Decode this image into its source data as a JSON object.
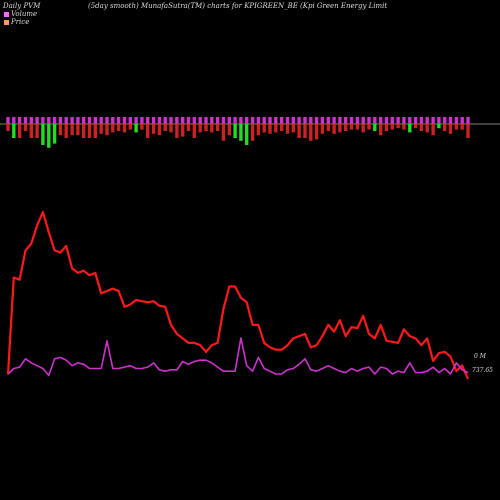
{
  "header": {
    "left": "Daily PVM",
    "middle": "(5day smooth) MunafaSutra(TM) charts for KPIGREEN_BE",
    "right": "(Kpi Green Energy Limit"
  },
  "legend": [
    {
      "label": "Volume",
      "color": "#ff66ff"
    },
    {
      "label": "Price",
      "color": "#ff9955"
    }
  ],
  "end_labels": {
    "volume": "0 M",
    "price": "737.65"
  },
  "chart_data": {
    "type": "line",
    "title": "",
    "grid": false,
    "colors": {
      "price": "#ff1a1a",
      "volume": "#cc33cc",
      "bar_up": "#cc2222",
      "bar_down": "#22dd22",
      "bar_top": "#cc33cc",
      "baseline": "#aaaaaa"
    },
    "x": [
      0,
      1,
      2,
      3,
      4,
      5,
      6,
      7,
      8,
      9,
      10,
      11,
      12,
      13,
      14,
      15,
      16,
      17,
      18,
      19,
      20,
      21,
      22,
      23,
      24,
      25,
      26,
      27,
      28,
      29,
      30,
      31,
      32,
      33,
      34,
      35,
      36,
      37,
      38,
      39,
      40,
      41,
      42,
      43,
      44,
      45,
      46,
      47,
      48,
      49,
      50,
      51,
      52,
      53,
      54,
      55,
      56,
      57,
      58,
      59,
      60,
      61,
      62,
      63,
      64,
      65,
      66,
      67,
      68,
      69,
      70,
      71,
      72,
      73,
      74,
      75,
      76,
      77,
      78,
      79
    ],
    "series": [
      {
        "key": "price",
        "values": [
          -20,
          410,
          400,
          530,
          560,
          640,
          700,
          610,
          530,
          520,
          550,
          450,
          430,
          440,
          420,
          430,
          340,
          350,
          360,
          350,
          280,
          290,
          310,
          305,
          300,
          305,
          285,
          280,
          200,
          160,
          140,
          120,
          120,
          110,
          80,
          110,
          120,
          270,
          370,
          370,
          320,
          300,
          200,
          200,
          120,
          100,
          90,
          90,
          110,
          140,
          150,
          160,
          100,
          110,
          150,
          200,
          170,
          220,
          150,
          190,
          185,
          240,
          160,
          140,
          200,
          130,
          125,
          120,
          180,
          150,
          140,
          110,
          140,
          40,
          75,
          80,
          60,
          -5,
          20,
          -40
        ]
      },
      {
        "key": "volume",
        "values": [
          0,
          20,
          25,
          55,
          40,
          30,
          20,
          -5,
          55,
          60,
          50,
          30,
          40,
          35,
          20,
          20,
          20,
          120,
          20,
          20,
          25,
          30,
          20,
          20,
          25,
          40,
          15,
          10,
          15,
          15,
          45,
          35,
          45,
          50,
          50,
          40,
          25,
          10,
          10,
          10,
          130,
          30,
          10,
          60,
          20,
          10,
          0,
          0,
          15,
          20,
          35,
          55,
          15,
          10,
          20,
          30,
          20,
          10,
          5,
          20,
          10,
          20,
          25,
          0,
          25,
          20,
          0,
          10,
          5,
          40,
          5,
          5,
          10,
          25,
          5,
          20,
          0,
          40,
          15,
          5
        ]
      },
      {
        "key": "volume_bar",
        "values": [
          -0.5,
          -1,
          -1,
          -0.5,
          -1,
          -1,
          -1.5,
          -1.7,
          -1.4,
          -0.8,
          -1,
          -0.8,
          -0.8,
          -1,
          -1,
          -1,
          -0.7,
          -0.8,
          -0.6,
          -0.5,
          -0.6,
          -0.4,
          -0.6,
          -0.4,
          -1,
          -0.7,
          -0.8,
          -0.5,
          -0.6,
          -1,
          -0.9,
          -0.5,
          -1,
          -0.6,
          -0.5,
          -0.6,
          -0.5,
          -1.2,
          -0.8,
          -1,
          -1.2,
          -1.5,
          -1.2,
          -0.8,
          -0.6,
          -0.7,
          -0.6,
          -0.5,
          -0.7,
          -0.6,
          -1,
          -1,
          -1.2,
          -1.1,
          -0.7,
          -0.5,
          -0.7,
          -0.6,
          -0.5,
          -0.4,
          -0.4,
          -0.6,
          -0.4,
          -0.5,
          -0.8,
          -0.5,
          -0.4,
          -0.3,
          -0.4,
          -0.6,
          -0.3,
          -0.5,
          -0.6,
          -0.8,
          -0.3,
          -0.5,
          -0.7,
          -0.4,
          -0.4,
          -1
        ]
      },
      {
        "key": "bar_color",
        "values": [
          "red",
          "green",
          "red",
          "red",
          "red",
          "red",
          "green",
          "green",
          "green",
          "red",
          "red",
          "red",
          "red",
          "red",
          "red",
          "red",
          "red",
          "red",
          "red",
          "red",
          "red",
          "red",
          "green",
          "red",
          "red",
          "red",
          "red",
          "red",
          "red",
          "red",
          "red",
          "red",
          "red",
          "red",
          "red",
          "red",
          "red",
          "red",
          "red",
          "green",
          "green",
          "green",
          "red",
          "red",
          "red",
          "red",
          "red",
          "red",
          "red",
          "red",
          "red",
          "red",
          "red",
          "red",
          "red",
          "red",
          "red",
          "red",
          "red",
          "red",
          "red",
          "red",
          "red",
          "green",
          "red",
          "red",
          "red",
          "red",
          "red",
          "green",
          "red",
          "red",
          "red",
          "red",
          "green",
          "red",
          "red",
          "red",
          "red",
          "red"
        ]
      }
    ]
  }
}
